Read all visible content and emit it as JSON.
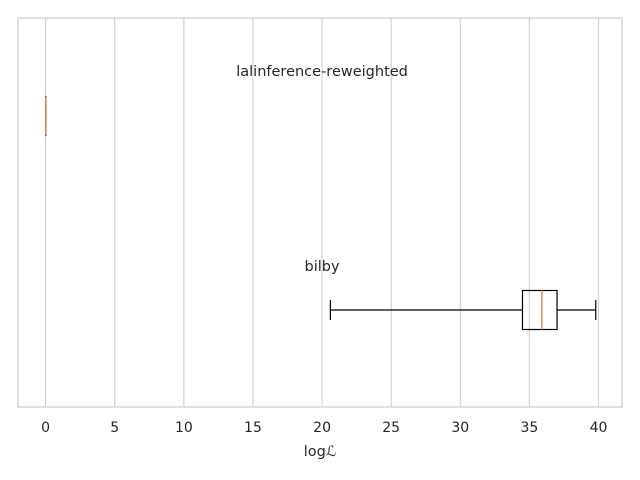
{
  "chart_data": {
    "type": "boxplot",
    "orientation": "horizontal",
    "xlabel": "logℒ",
    "xlim": [
      -2,
      41.7
    ],
    "xticks": [
      0,
      5,
      10,
      15,
      20,
      25,
      30,
      35,
      40
    ],
    "grid": "x",
    "series": [
      {
        "name": "lalinference-reweighted",
        "label_x": 20,
        "min": 0,
        "q1": 0,
        "median": 0,
        "q3": 0,
        "max": 0
      },
      {
        "name": "bilby",
        "label_x": 20,
        "min": 20.6,
        "q1": 34.5,
        "median": 35.9,
        "q3": 37.0,
        "max": 39.8
      }
    ],
    "colors": {
      "grid": "#d3d3d3",
      "spine": "#cccccc",
      "box": "#000000",
      "median": "#dd8452",
      "text": "#262626"
    }
  }
}
